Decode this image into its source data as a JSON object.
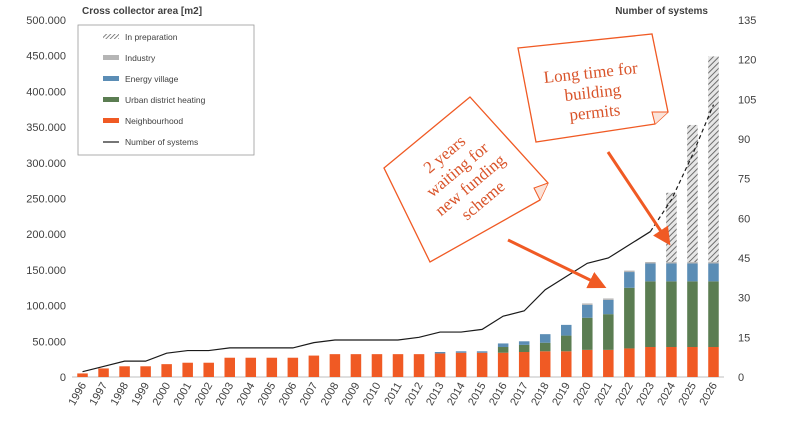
{
  "chart_data": {
    "type": "bar",
    "left_axis_title": "Cross collector area [m2]",
    "right_axis_title": "Number of systems",
    "y_left": {
      "min": 0,
      "max": 500000,
      "ticks": [
        "0",
        "50.000",
        "100.000",
        "150.000",
        "200.000",
        "250.000",
        "300.000",
        "350.000",
        "400.000",
        "450.000",
        "500.000"
      ]
    },
    "y_right": {
      "min": 0,
      "max": 135,
      "ticks": [
        "0",
        "15",
        "30",
        "45",
        "60",
        "75",
        "90",
        "105",
        "120",
        "135"
      ]
    },
    "categories": [
      "1996",
      "1997",
      "1998",
      "1999",
      "2000",
      "2001",
      "2002",
      "2003",
      "2004",
      "2005",
      "2006",
      "2007",
      "2008",
      "2009",
      "2010",
      "2011",
      "2012",
      "2013",
      "2014",
      "2015",
      "2016",
      "2017",
      "2018",
      "2019",
      "2020",
      "2021",
      "2022",
      "2023",
      "2024",
      "2025",
      "2026"
    ],
    "series": [
      {
        "name": "Neighbourhood",
        "color": "#f05a24",
        "pattern": false,
        "values": [
          5000,
          12000,
          15000,
          15000,
          18000,
          20000,
          20000,
          27000,
          27000,
          27000,
          27000,
          30000,
          32000,
          32000,
          32000,
          32000,
          32000,
          33000,
          34000,
          34000,
          34000,
          35000,
          36000,
          36000,
          38000,
          38000,
          40000,
          42000,
          42000,
          42000,
          42000
        ]
      },
      {
        "name": "Urban district heating",
        "color": "#5b7d52",
        "pattern": false,
        "values": [
          0,
          0,
          0,
          0,
          0,
          0,
          0,
          0,
          0,
          0,
          0,
          0,
          0,
          0,
          0,
          0,
          0,
          0,
          0,
          0,
          8000,
          10000,
          12000,
          22000,
          45000,
          50000,
          85000,
          92000,
          92000,
          92000,
          92000
        ]
      },
      {
        "name": "Energy village",
        "color": "#5b8db5",
        "pattern": false,
        "values": [
          0,
          0,
          0,
          0,
          0,
          0,
          0,
          0,
          0,
          0,
          0,
          0,
          0,
          0,
          0,
          0,
          0,
          2000,
          2000,
          2000,
          5000,
          5000,
          12000,
          15000,
          18000,
          20000,
          22000,
          25000,
          25000,
          25000,
          25000
        ]
      },
      {
        "name": "Industry",
        "color": "#b5b5b5",
        "pattern": false,
        "values": [
          0,
          0,
          0,
          0,
          0,
          0,
          0,
          0,
          0,
          0,
          0,
          0,
          0,
          0,
          0,
          0,
          0,
          0,
          0,
          0,
          0,
          0,
          0,
          0,
          2000,
          2000,
          2000,
          2000,
          2000,
          2000,
          2000
        ]
      },
      {
        "name": "In preparation",
        "color": "#8c8c8c",
        "pattern": true,
        "values": [
          0,
          0,
          0,
          0,
          0,
          0,
          0,
          0,
          0,
          0,
          0,
          0,
          0,
          0,
          0,
          0,
          0,
          0,
          0,
          0,
          0,
          0,
          0,
          0,
          0,
          0,
          0,
          0,
          97000,
          192000,
          288000
        ]
      }
    ],
    "line": {
      "name": "Number of systems",
      "axis": "right",
      "values": [
        2,
        4,
        6,
        6,
        9,
        10,
        10,
        11,
        11,
        11,
        11,
        13,
        14,
        14,
        14,
        14,
        15,
        17,
        17,
        18,
        23,
        25,
        33,
        38,
        43,
        45,
        50,
        55,
        67,
        84,
        103
      ],
      "dashed_from_index": 27
    },
    "legend": {
      "position": "top-left",
      "items": [
        "In preparation",
        "Industry",
        "Energy village",
        "Urban district heating",
        "Neighbourhood",
        "Number of systems"
      ]
    },
    "annotations": [
      {
        "lines": [
          "Long time for",
          "building",
          "permits"
        ],
        "target_index": 28
      },
      {
        "lines": [
          "2 years",
          "waiting for",
          "new funding",
          "scheme"
        ],
        "target_index": 25
      }
    ]
  }
}
